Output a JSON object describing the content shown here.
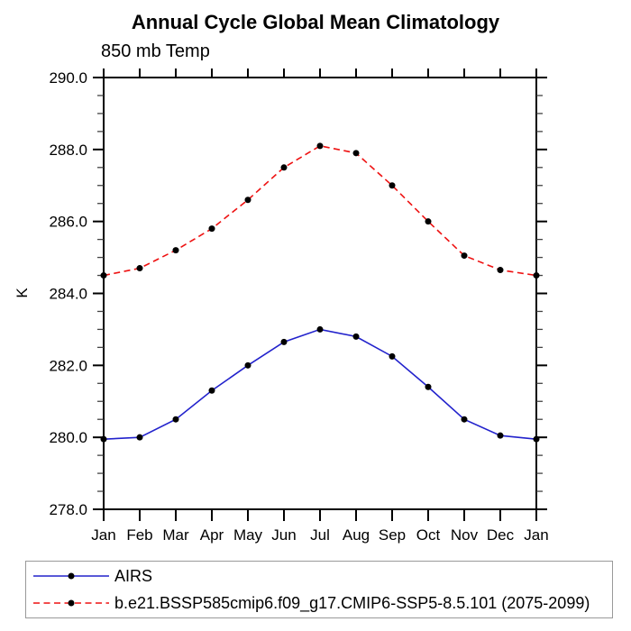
{
  "page": {
    "background": "#ffffff"
  },
  "chart_data": {
    "type": "line",
    "title": "Annual Cycle Global Mean Climatology",
    "subtitle": "850 mb Temp",
    "ylabel": "K",
    "x_categories": [
      "Jan",
      "Feb",
      "Mar",
      "Apr",
      "May",
      "Jun",
      "Jul",
      "Aug",
      "Sep",
      "Oct",
      "Nov",
      "Dec",
      "Jan"
    ],
    "ylim": [
      278.0,
      290.0
    ],
    "y_major_step": 2.0,
    "y_minor_step": 0.5,
    "y_tick_labels": [
      "278.0",
      "280.0",
      "282.0",
      "284.0",
      "286.0",
      "288.0",
      "290.0"
    ],
    "grid": false,
    "legend_position": "bottom",
    "axis_color": "#000000",
    "minor_tick_color": "#444444",
    "series": [
      {
        "name": "AIRS",
        "color": "#2222cc",
        "style": "solid",
        "marker": "circle",
        "marker_color": "#000000",
        "values": [
          279.95,
          280.0,
          280.5,
          281.3,
          282.0,
          282.65,
          283.0,
          282.8,
          282.25,
          281.4,
          280.5,
          280.05,
          279.95
        ]
      },
      {
        "name": "b.e21.BSSP585cmip6.f09_g17.CMIP6-SSP5-8.5.101 (2075-2099)",
        "color": "#ee1111",
        "style": "dashed",
        "marker": "circle",
        "marker_color": "#000000",
        "values": [
          284.5,
          284.7,
          285.2,
          285.8,
          286.6,
          287.5,
          288.1,
          287.9,
          287.0,
          286.0,
          285.05,
          284.65,
          284.5
        ]
      }
    ]
  }
}
